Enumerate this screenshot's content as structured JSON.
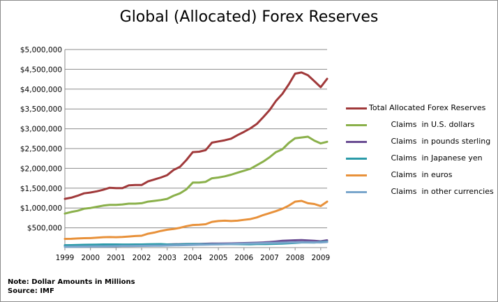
{
  "title": "Global  (Allocated) Forex Reserves",
  "note_lines": [
    "Note: Dollar Amounts in Millions",
    "Source: IMF"
  ],
  "chart_data": {
    "type": "line",
    "title": "Global  (Allocated) Forex Reserves",
    "xlabel": "",
    "ylabel": "",
    "x": [
      1999,
      1999.25,
      1999.5,
      1999.75,
      2000,
      2000.25,
      2000.5,
      2000.75,
      2001,
      2001.25,
      2001.5,
      2001.75,
      2002,
      2002.25,
      2002.5,
      2002.75,
      2003,
      2003.25,
      2003.5,
      2003.75,
      2004,
      2004.25,
      2004.5,
      2004.75,
      2005,
      2005.25,
      2005.5,
      2005.75,
      2006,
      2006.25,
      2006.5,
      2006.75,
      2007,
      2007.25,
      2007.5,
      2007.75,
      2008,
      2008.25,
      2008.5,
      2008.75,
      2009,
      2009.25
    ],
    "xlim": [
      1999,
      2009.25
    ],
    "ylim": [
      0,
      5000000
    ],
    "x_tick_labels": [
      "1999",
      "2000",
      "2001",
      "2002",
      "2003",
      "2004",
      "2005",
      "2006",
      "2007",
      "2008",
      "2009"
    ],
    "y_tick_labels": [
      "",
      "$500,000",
      "$1,000,000",
      "$1,500,000",
      "$2,000,000",
      "$2,500,000",
      "$3,000,000",
      "$3,500,000",
      "$4,000,000",
      "$4,500,000",
      "$5,000,000"
    ],
    "grid": "horizontal",
    "legend_position": "right",
    "series": [
      {
        "name": "Total Allocated Forex Reserves",
        "color": "#a0393a",
        "values": [
          1230000,
          1260000,
          1310000,
          1370000,
          1390000,
          1420000,
          1460000,
          1510000,
          1500000,
          1500000,
          1570000,
          1580000,
          1580000,
          1670000,
          1720000,
          1770000,
          1830000,
          1960000,
          2040000,
          2210000,
          2410000,
          2420000,
          2460000,
          2650000,
          2680000,
          2710000,
          2750000,
          2840000,
          2920000,
          3010000,
          3120000,
          3290000,
          3470000,
          3700000,
          3880000,
          4120000,
          4390000,
          4420000,
          4350000,
          4200000,
          4050000,
          4260000
        ]
      },
      {
        "name": "         Claims  in U.S. dollars",
        "color": "#8ab04a",
        "values": [
          860000,
          900000,
          930000,
          980000,
          1000000,
          1030000,
          1060000,
          1080000,
          1080000,
          1090000,
          1110000,
          1110000,
          1120000,
          1160000,
          1180000,
          1200000,
          1230000,
          1310000,
          1370000,
          1470000,
          1640000,
          1640000,
          1660000,
          1750000,
          1770000,
          1800000,
          1840000,
          1890000,
          1940000,
          1990000,
          2080000,
          2170000,
          2280000,
          2410000,
          2480000,
          2640000,
          2760000,
          2780000,
          2800000,
          2700000,
          2630000,
          2670000
        ]
      },
      {
        "name": "         Claims  in pounds sterling",
        "color": "#6a4c92",
        "values": [
          55000,
          57000,
          60000,
          62000,
          64000,
          64000,
          65000,
          67000,
          68000,
          68000,
          70000,
          72000,
          72000,
          74000,
          76000,
          78000,
          80000,
          82000,
          86000,
          90000,
          92000,
          94000,
          96000,
          100000,
          102000,
          104000,
          106000,
          110000,
          114000,
          118000,
          124000,
          130000,
          140000,
          155000,
          170000,
          178000,
          185000,
          188000,
          180000,
          170000,
          158000,
          185000
        ]
      },
      {
        "name": "         Claims  in Japanese yen",
        "color": "#2a9aa8",
        "values": [
          60000,
          62000,
          66000,
          70000,
          72000,
          76000,
          80000,
          80000,
          80000,
          78000,
          78000,
          80000,
          80000,
          82000,
          86000,
          88000,
          80000,
          76000,
          80000,
          86000,
          88000,
          86000,
          84000,
          82000,
          84000,
          86000,
          88000,
          88000,
          86000,
          84000,
          90000,
          90000,
          92000,
          96000,
          100000,
          110000,
          120000,
          130000,
          130000,
          128000,
          140000,
          150000
        ]
      },
      {
        "name": "         Claims  in euros",
        "color": "#e8913a",
        "values": [
          220000,
          222000,
          230000,
          238000,
          240000,
          250000,
          262000,
          266000,
          262000,
          268000,
          280000,
          292000,
          300000,
          350000,
          380000,
          420000,
          450000,
          470000,
          500000,
          540000,
          570000,
          578000,
          590000,
          650000,
          670000,
          680000,
          670000,
          680000,
          700000,
          720000,
          760000,
          820000,
          870000,
          920000,
          980000,
          1060000,
          1160000,
          1180000,
          1120000,
          1100000,
          1050000,
          1160000
        ]
      },
      {
        "name": "         Claims  in other currencies",
        "color": "#7aa6cc",
        "values": [
          20000,
          22000,
          24000,
          26000,
          28000,
          30000,
          32000,
          34000,
          36000,
          38000,
          40000,
          42000,
          44000,
          46000,
          48000,
          50000,
          52000,
          56000,
          60000,
          64000,
          68000,
          72000,
          76000,
          80000,
          84000,
          88000,
          92000,
          96000,
          100000,
          104000,
          108000,
          112000,
          116000,
          120000,
          124000,
          128000,
          132000,
          134000,
          134000,
          132000,
          130000,
          140000
        ]
      }
    ]
  }
}
